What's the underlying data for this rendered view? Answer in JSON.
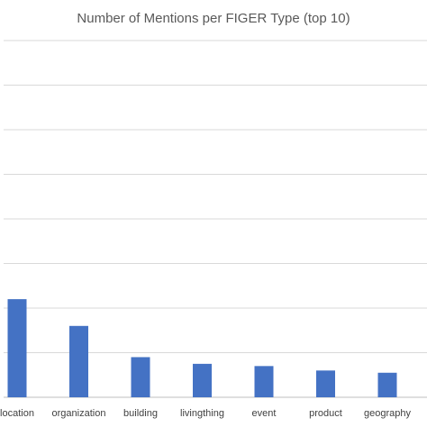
{
  "chart_data": {
    "type": "bar",
    "title": "Number of Mentions per FIGER Type (top 10)",
    "categories": [
      "location",
      "organization",
      "building",
      "livingthing",
      "event",
      "product",
      "geography"
    ],
    "values": [
      2.2,
      1.6,
      0.9,
      0.75,
      0.7,
      0.6,
      0.55
    ],
    "ylim": [
      0,
      8
    ],
    "grid": true,
    "colors": {
      "bar": "#4472C4",
      "grid": "#D9D9D9",
      "axis": "#BFBFBF"
    }
  }
}
